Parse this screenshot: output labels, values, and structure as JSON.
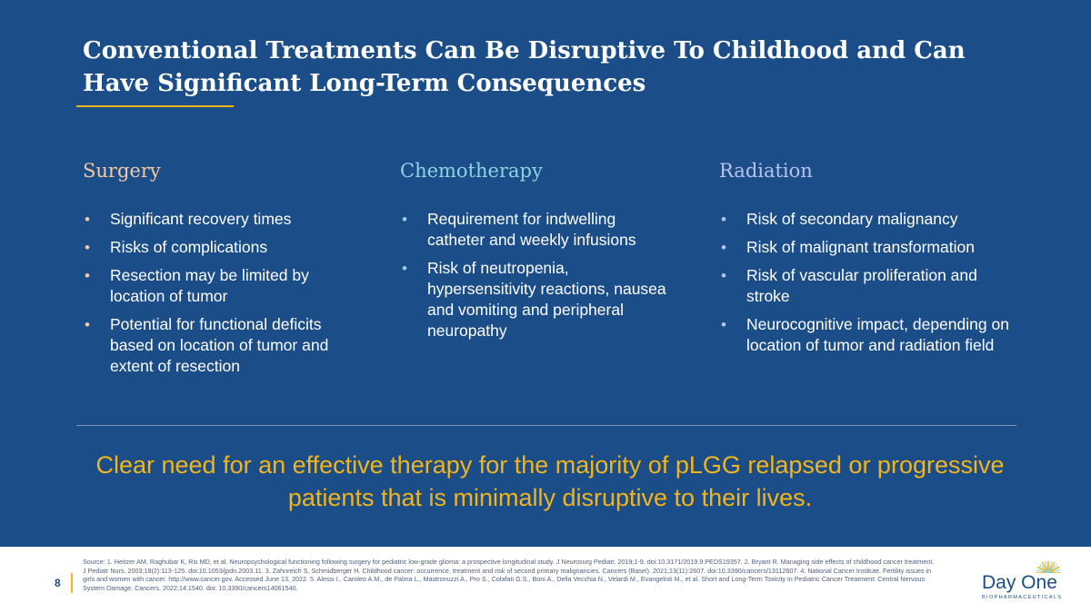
{
  "slide": {
    "title": "Conventional Treatments Can Be Disruptive To Childhood and Can Have Significant Long-Term Consequences",
    "columns": [
      {
        "heading": "Surgery",
        "bullets": [
          "Significant recovery times",
          "Risks of complications",
          "Resection may be limited by location of tumor",
          "Potential for functional deficits based on location of tumor and extent of resection"
        ]
      },
      {
        "heading": "Chemotherapy",
        "bullets": [
          "Requirement for indwelling catheter and weekly infusions",
          "Risk of neutropenia, hypersensitivity reactions, nausea and vomiting and peripheral neuropathy"
        ]
      },
      {
        "heading": "Radiation",
        "bullets": [
          "Risk of secondary malignancy",
          "Risk of malignant transformation",
          "Risk of vascular proliferation and stroke",
          "Neurocognitive impact, depending on location of tumor and radiation field"
        ]
      }
    ],
    "callout": "Clear need for an effective therapy for the majority of pLGG relapsed or progressive patients that is minimally disruptive to their lives.",
    "bullet_glyph": "•"
  },
  "footer": {
    "page_number": "8",
    "source": "Source: 1. Heitzer AM, Raghubar K, Ris MD, et al. Neuropsychological functioning following surgery for pediatric low-grade glioma: a prospective longitudinal study. J Neurosurg Pediatr. 2019;1-9. doi:10.3171/2019.9.PEDS19357. 2. Bryant R. Managing side effects of childhood cancer treatment. J Pediatr Nurs. 2003;18(2):113-125. doi:10.1053/jpdn.2003.11. 3. Zahnreich S, Schmidberger H. Childhood cancer: occurrence, treatment and risk of second primary malignancies. Cancers (Basel). 2021;13(11):2607. doi:10.3390/cancers/13112607. 4. National Cancer Institute. Fertility issues in girls and women with cancer. http://www.cancer.gov. Accessed June 13, 2022. 5. Alessi I., Caroleo A.M., de Palma L., Mastronuzzi A., Pro S., Colafati G.S., Boni A., Della Vecchia N., Velardi M., Evangelisti M., et al. Short and Long-Term Toxicity in Pediatric Cancer Treatment: Central Nervous System Damage. Cancers. 2022;14:1540. doi: 10.3390/cancers14061540.",
    "logo_name": "Day One",
    "logo_sub": "BIOPHARMACEUTICALS"
  },
  "colors": {
    "background": "#1b4d89",
    "accent": "#f2b41b",
    "surgery": "#f3c8a3",
    "chemotherapy": "#8fd3e2",
    "radiation": "#b9c4ee"
  }
}
